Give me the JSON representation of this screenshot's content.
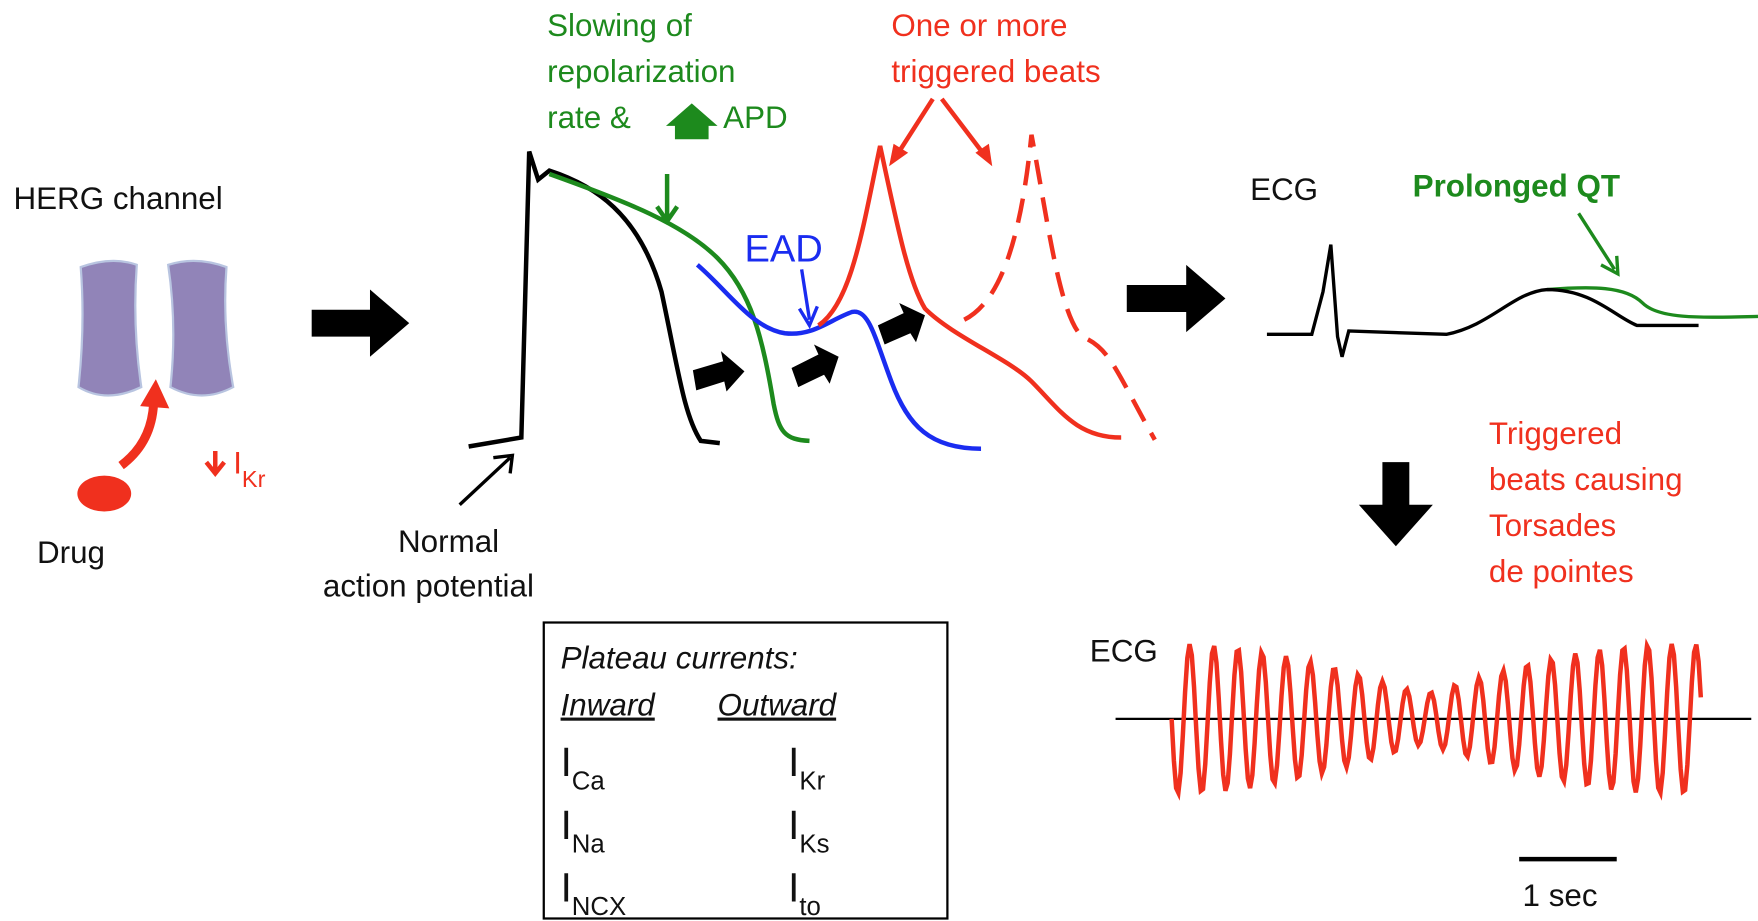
{
  "herg": {
    "title": "HERG channel",
    "drug": "Drug",
    "current": {
      "symbol": "I",
      "subscript": "Kr"
    }
  },
  "action_potential": {
    "normal_label": [
      "Normal",
      "action potential"
    ],
    "slowing_label": [
      "Slowing of",
      "repolarization",
      "rate &",
      "APD"
    ],
    "triggered_label": [
      "One or more",
      "triggered beats"
    ],
    "ead_label": "EAD"
  },
  "ecg_top": {
    "label": "ECG",
    "annotation": "Prolonged QT"
  },
  "torsades": {
    "annotation": [
      "Triggered",
      "beats causing",
      "Torsades",
      "de pointes"
    ],
    "label": "ECG",
    "scale_label": "1 sec"
  },
  "plateau": {
    "title": "Plateau currents:",
    "inward": "Inward",
    "outward": "Outward",
    "inward_currents": [
      {
        "symbol": "I",
        "subscript": "Ca"
      },
      {
        "symbol": "I",
        "subscript": "Na"
      },
      {
        "symbol": "I",
        "subscript": "NCX"
      }
    ],
    "outward_currents": [
      {
        "symbol": "I",
        "subscript": "Kr"
      },
      {
        "symbol": "I",
        "subscript": "Ks"
      },
      {
        "symbol": "I",
        "subscript": "to"
      }
    ]
  }
}
